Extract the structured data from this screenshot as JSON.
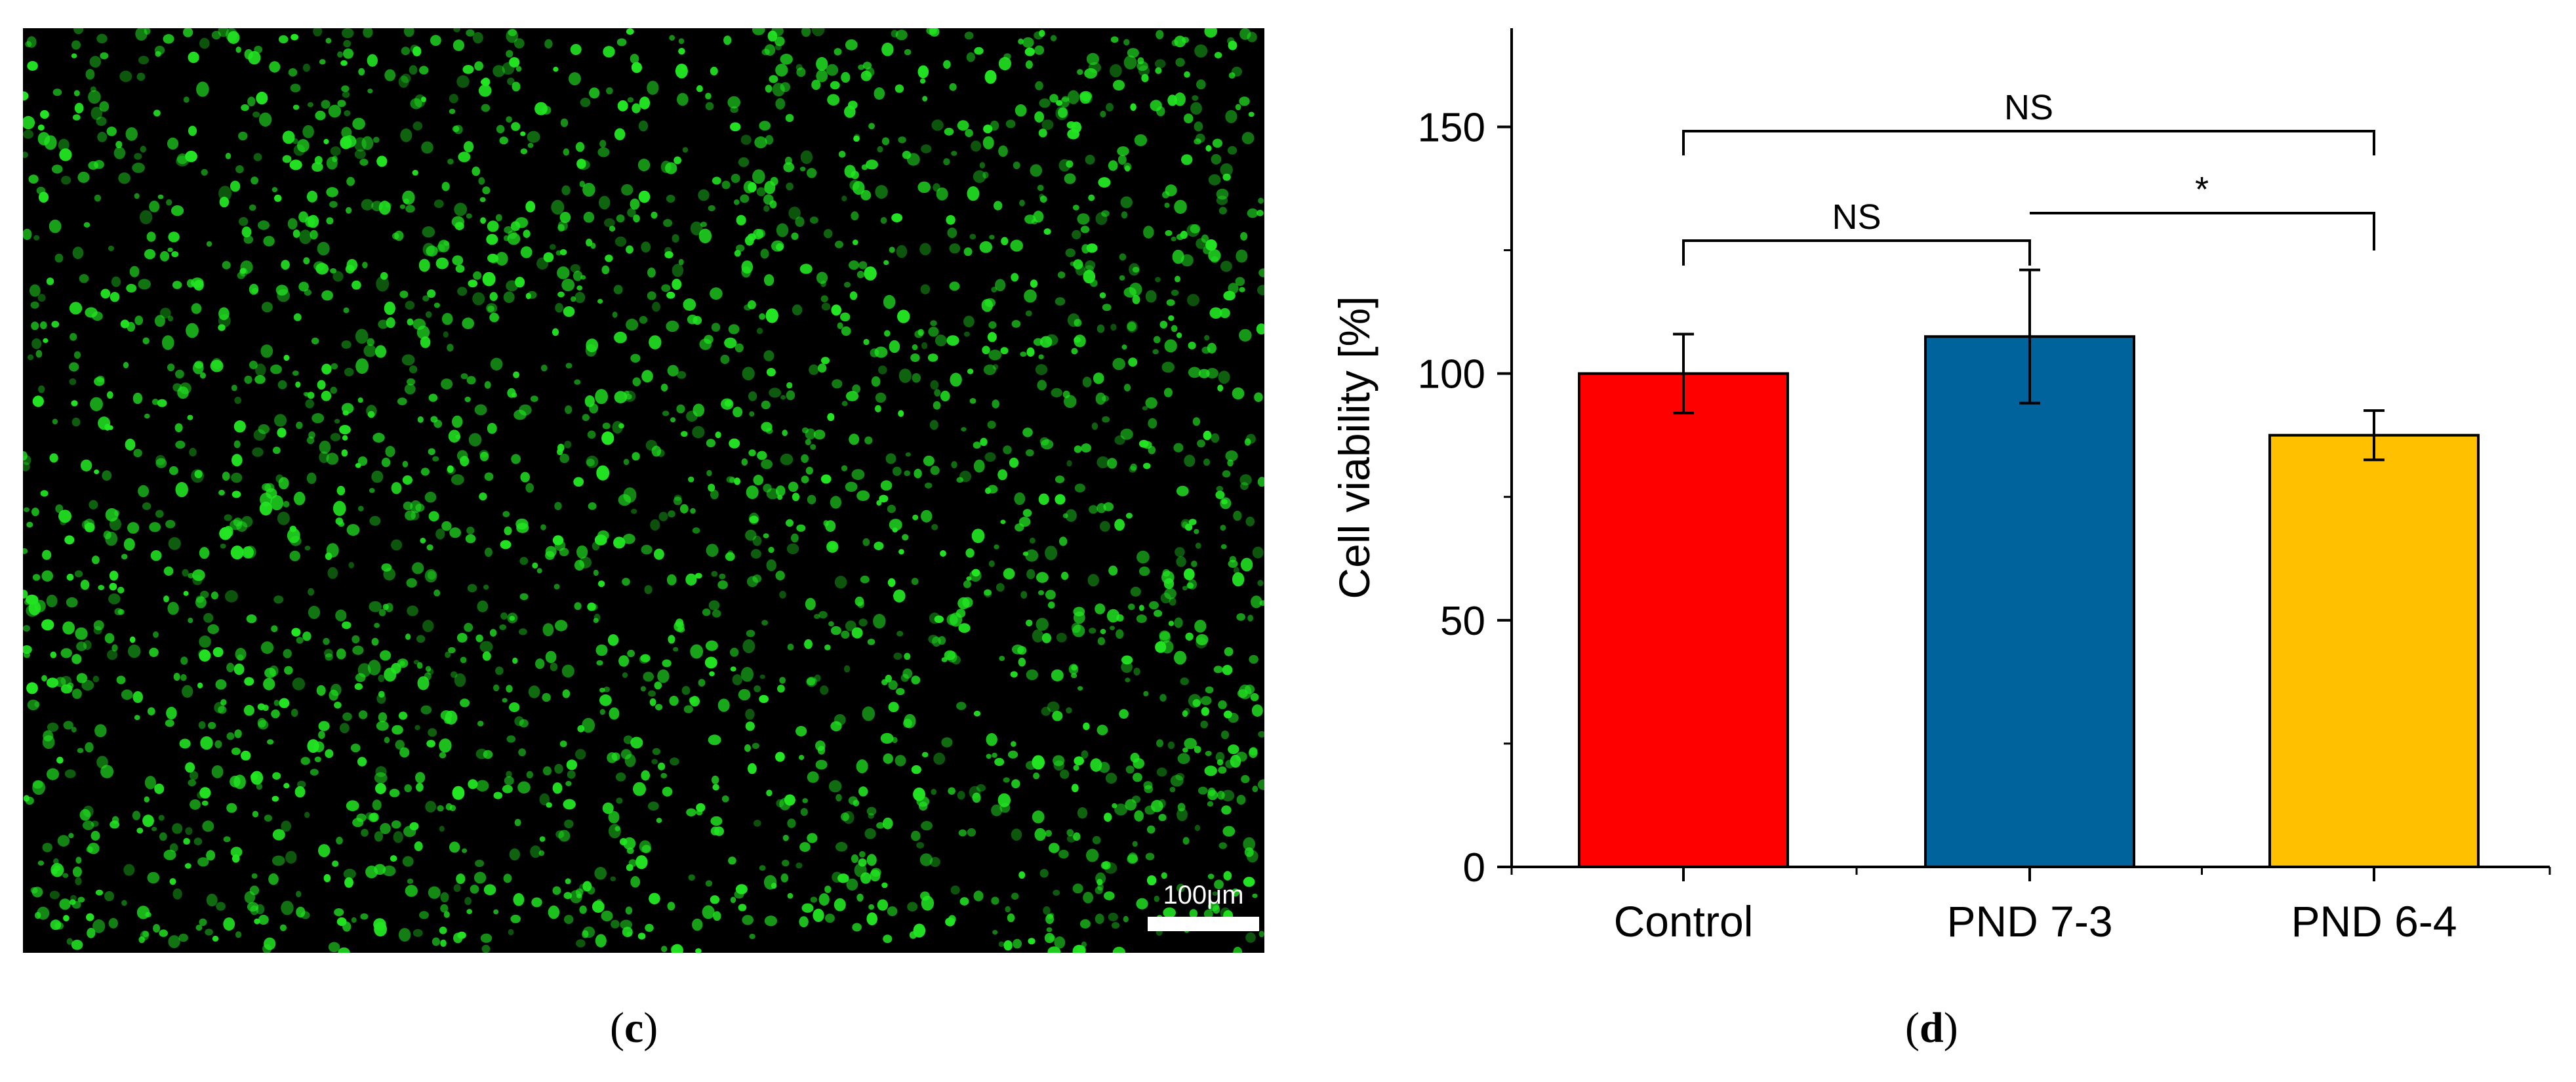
{
  "panels": {
    "c": {
      "open": "(",
      "letter": "c",
      "close": ")"
    },
    "d": {
      "open": "(",
      "letter": "d",
      "close": ")"
    }
  },
  "micrograph": {
    "scale_label": "100μm",
    "background_color": "#000000",
    "cell_color": "#22e622"
  },
  "chart_data": {
    "type": "bar",
    "categories": [
      "Control",
      "PND 7-3",
      "PND 6-4"
    ],
    "values": [
      100,
      107.5,
      87.5
    ],
    "errors": [
      8,
      13.5,
      5
    ],
    "colors": [
      "#ff0000",
      "#00639c",
      "#ffc000"
    ],
    "ylabel": "Cell viability [%]",
    "ylim": [
      0,
      170
    ],
    "yticks": [
      0,
      50,
      100,
      150
    ],
    "yminor_step": 25,
    "significance": [
      {
        "from": 0,
        "to": 2,
        "label": "NS"
      },
      {
        "from": 0,
        "to": 1,
        "label": "NS"
      },
      {
        "from": 1,
        "to": 2,
        "label": "*"
      }
    ]
  }
}
